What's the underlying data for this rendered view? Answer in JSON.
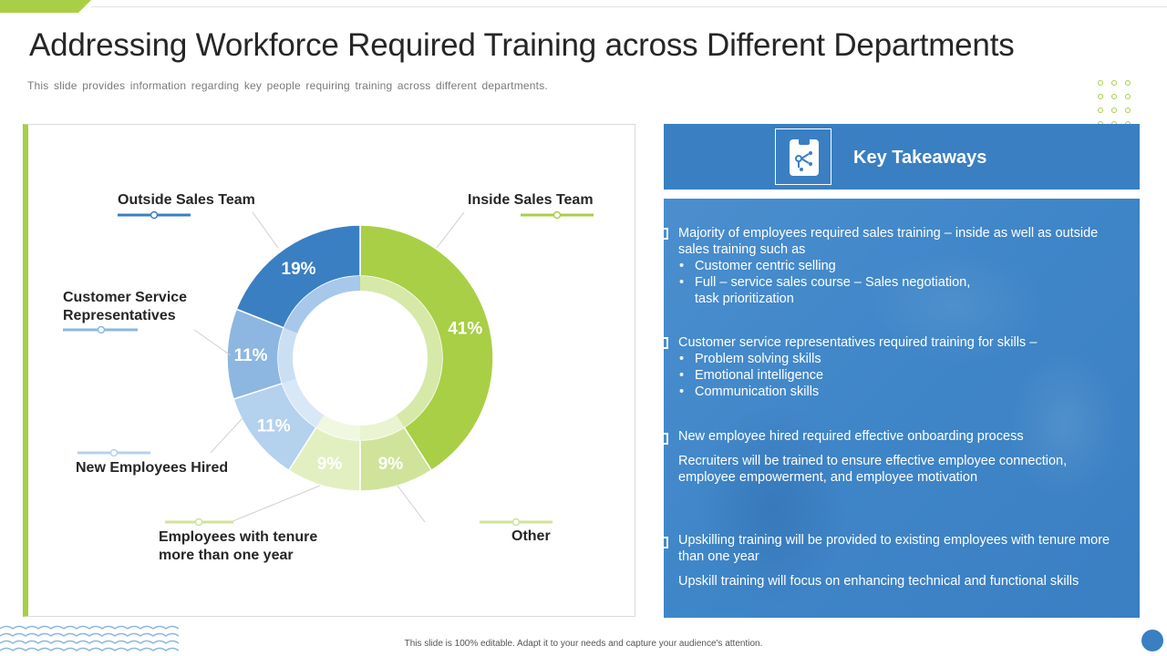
{
  "title": "Addressing Workforce Required Training across Different Departments",
  "subtitle": "This slide provides information regarding key people requiring training across different departments.",
  "footer": "This slide is 100% editable. Adapt it to your needs and capture your audience's attention.",
  "colors": {
    "green": "#a8cf45",
    "blue": "#3a7fc2",
    "light_blue": "#8db7e0",
    "pale_blue": "#b4d1ee",
    "pale_green": "#d6e9a8"
  },
  "chart_data": {
    "type": "pie",
    "variant": "donut",
    "categories": [
      "Inside Sales Team",
      "Other",
      "Employees with tenure more than one year",
      "New Employees Hired",
      "Customer Service Representatives",
      "Outside Sales Team"
    ],
    "values": [
      41,
      9,
      9,
      11,
      11,
      19
    ],
    "value_labels": [
      "41%",
      "9%",
      "9%",
      "11%",
      "11%",
      "19%"
    ]
  },
  "labels": {
    "outside_sales": "Outside Sales Team",
    "inside_sales": "Inside Sales Team",
    "csr_line1": "Customer Service",
    "csr_line2": "Representatives",
    "new_employees": "New Employees Hired",
    "tenure_line1": "Employees with tenure",
    "tenure_line2": "more than one year",
    "other": "Other"
  },
  "key_takeaways": {
    "title": "Key Takeaways",
    "icon": "clipboard-network-icon",
    "items": [
      {
        "lines": [
          "Majority of employees required sales training – inside as well as outside",
          "sales training  such as"
        ],
        "bullets": [
          "Customer centric selling",
          "Full – service sales course – Sales negotiation,"
        ],
        "tail": "task prioritization"
      },
      {
        "lines": [
          "Customer service representatives required training for skills –"
        ],
        "bullets": [
          "Problem solving skills",
          "Emotional intelligence",
          "Communication skills"
        ]
      },
      {
        "lines": [
          "New employee hired required effective onboarding process"
        ],
        "detail": [
          "Recruiters will be trained to ensure effective employee connection,",
          "employee empowerment, and employee motivation"
        ]
      },
      {
        "lines": [
          "Upskilling training will be provided to existing employees with tenure more",
          "than one year"
        ],
        "detail": [
          "Upskill training will focus on enhancing technical and functional skills"
        ]
      }
    ]
  }
}
